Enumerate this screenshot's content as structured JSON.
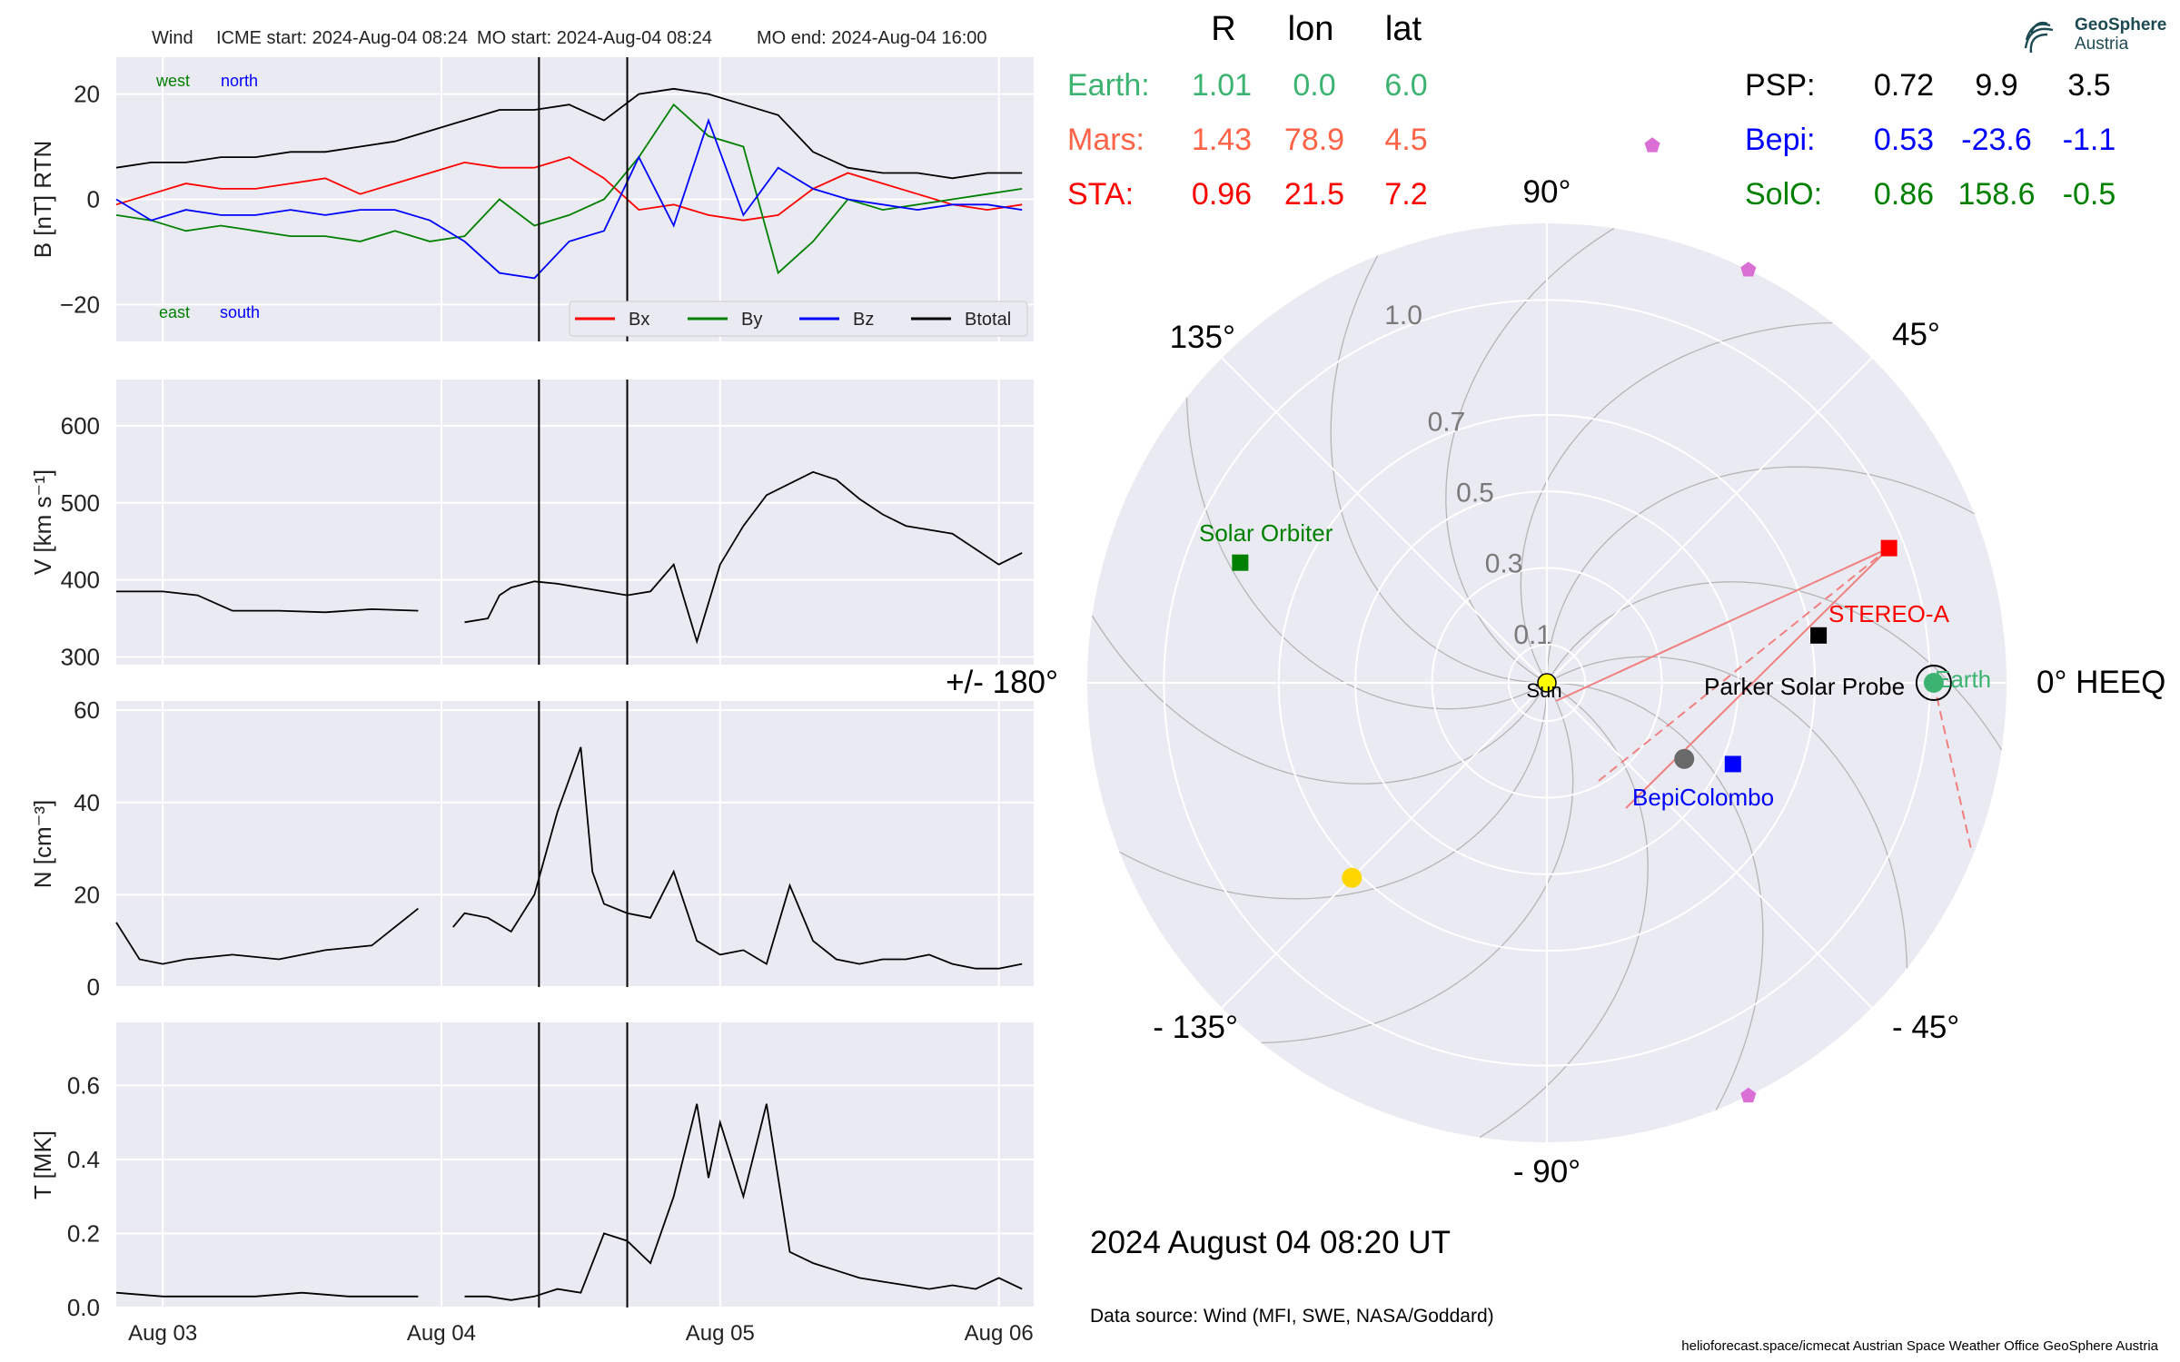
{
  "header": {
    "spacecraft": "Wind",
    "icme_start": "ICME start: 2024-Aug-04 08:24",
    "mo_start": "MO start: 2024-Aug-04 08:24",
    "mo_end": "MO end: 2024-Aug-04 16:00"
  },
  "logo": {
    "line1": "GeoSphere",
    "line2": "Austria"
  },
  "date_label": "2024 August 04  08:20 UT",
  "data_source": "Data source: Wind (MFI, SWE, NASA/Goddard)",
  "footer": "helioforecast.space/icmecat   Austrian Space Weather Office   GeoSphere Austria",
  "position_table": {
    "headers": [
      "R",
      "lon",
      "lat"
    ],
    "left_rows": [
      {
        "name": "Earth:",
        "R": "1.01",
        "lon": "0.0",
        "lat": "6.0",
        "color": "#3cb371"
      },
      {
        "name": "Mars:",
        "R": "1.43",
        "lon": "78.9",
        "lat": "4.5",
        "color": "#ff6347"
      },
      {
        "name": "STA:",
        "R": "0.96",
        "lon": "21.5",
        "lat": "7.2",
        "color": "#ff0000"
      }
    ],
    "right_rows": [
      {
        "name": "PSP:",
        "R": "0.72",
        "lon": "9.9",
        "lat": "3.5",
        "color": "#000000"
      },
      {
        "name": "Bepi:",
        "R": "0.53",
        "lon": "-23.6",
        "lat": "-1.1",
        "color": "#0000ff"
      },
      {
        "name": "SolO:",
        "R": "0.86",
        "lon": "158.6",
        "lat": "-0.5",
        "color": "#008000"
      }
    ]
  },
  "chart_data": [
    {
      "type": "line",
      "ylabel": "B [nT] RTN",
      "ylim": [
        -27,
        27
      ],
      "yticks": [
        -20,
        0,
        20
      ],
      "ytick_labels": [
        "−20",
        "0",
        "20"
      ],
      "x_range": [
        "2024-08-02 20:00",
        "2024-08-06 03:00"
      ],
      "xticks": [
        "Aug 03",
        "Aug 04",
        "Aug 05",
        "Aug 06"
      ],
      "vlines": [
        "2024-08-04 08:24",
        "2024-08-04 16:00"
      ],
      "labels": {
        "west": "west",
        "north": "north",
        "east": "east",
        "south": "south"
      },
      "legend": "lower right",
      "series": [
        {
          "name": "Bx",
          "color": "#ff0000",
          "x": [
            0,
            3,
            6,
            9,
            12,
            15,
            18,
            21,
            24,
            27,
            30,
            33,
            36,
            39,
            42,
            45,
            48,
            51,
            54,
            57,
            60,
            63,
            66,
            69,
            72,
            75,
            78
          ],
          "y": [
            -1,
            1,
            3,
            2,
            2,
            3,
            4,
            1,
            3,
            5,
            7,
            6,
            6,
            8,
            4,
            -2,
            -1,
            -3,
            -4,
            -3,
            2,
            5,
            3,
            1,
            -1,
            -2,
            -1
          ]
        },
        {
          "name": "By",
          "color": "#008000",
          "x": [
            0,
            3,
            6,
            9,
            12,
            15,
            18,
            21,
            24,
            27,
            30,
            33,
            36,
            39,
            42,
            45,
            48,
            51,
            54,
            57,
            60,
            63,
            66,
            69,
            72,
            75,
            78
          ],
          "y": [
            -3,
            -4,
            -6,
            -5,
            -6,
            -7,
            -7,
            -8,
            -6,
            -8,
            -7,
            0,
            -5,
            -3,
            0,
            8,
            18,
            12,
            10,
            -14,
            -8,
            0,
            -2,
            -1,
            0,
            1,
            2
          ]
        },
        {
          "name": "Bz",
          "color": "#0000ff",
          "x": [
            0,
            3,
            6,
            9,
            12,
            15,
            18,
            21,
            24,
            27,
            30,
            33,
            36,
            39,
            42,
            45,
            48,
            51,
            54,
            57,
            60,
            63,
            66,
            69,
            72,
            75,
            78
          ],
          "y": [
            0,
            -4,
            -2,
            -3,
            -3,
            -2,
            -3,
            -2,
            -2,
            -4,
            -8,
            -14,
            -15,
            -8,
            -6,
            8,
            -5,
            15,
            -3,
            6,
            2,
            0,
            -1,
            -2,
            -1,
            -1,
            -2
          ]
        },
        {
          "name": "Btotal",
          "color": "#000000",
          "x": [
            0,
            3,
            6,
            9,
            12,
            15,
            18,
            21,
            24,
            27,
            30,
            33,
            36,
            39,
            42,
            45,
            48,
            51,
            54,
            57,
            60,
            63,
            66,
            69,
            72,
            75,
            78
          ],
          "y": [
            6,
            7,
            7,
            8,
            8,
            9,
            9,
            10,
            11,
            13,
            15,
            17,
            17,
            18,
            15,
            20,
            21,
            20,
            18,
            16,
            9,
            6,
            5,
            5,
            4,
            5,
            5
          ]
        }
      ]
    },
    {
      "type": "line",
      "ylabel": "V [km s⁻¹]",
      "ylim": [
        290,
        660
      ],
      "yticks": [
        300,
        400,
        500,
        600
      ],
      "ytick_labels": [
        "300",
        "400",
        "500",
        "600"
      ],
      "series": [
        {
          "name": "",
          "color": "#000000",
          "x": [
            0,
            4,
            7,
            10,
            14,
            18,
            22,
            26,
            28,
            30,
            32,
            33,
            34,
            36,
            38,
            40,
            42,
            44,
            46,
            48,
            50,
            52,
            54,
            56,
            58,
            60,
            62,
            64,
            66,
            68,
            70,
            72,
            74,
            76,
            78
          ],
          "y": [
            385,
            385,
            380,
            360,
            360,
            358,
            362,
            360,
            null,
            345,
            350,
            380,
            390,
            398,
            395,
            390,
            385,
            380,
            385,
            420,
            320,
            420,
            470,
            510,
            525,
            540,
            530,
            505,
            485,
            470,
            465,
            460,
            440,
            420,
            435
          ]
        }
      ]
    },
    {
      "type": "line",
      "ylabel": "N [cm⁻³]",
      "ylim": [
        0,
        62
      ],
      "yticks": [
        0,
        20,
        40,
        60
      ],
      "ytick_labels": [
        "0",
        "20",
        "40",
        "60"
      ],
      "series": [
        {
          "name": "",
          "color": "#000000",
          "x": [
            0,
            2,
            4,
            6,
            10,
            14,
            18,
            22,
            26,
            28,
            29,
            30,
            32,
            34,
            36,
            38,
            40,
            41,
            42,
            43,
            44,
            46,
            48,
            50,
            52,
            54,
            56,
            58,
            60,
            62,
            64,
            66,
            68,
            70,
            72,
            74,
            76,
            78
          ],
          "y": [
            14,
            6,
            5,
            6,
            7,
            6,
            8,
            9,
            17,
            null,
            13,
            16,
            15,
            12,
            20,
            38,
            52,
            25,
            18,
            17,
            16,
            15,
            25,
            10,
            7,
            8,
            5,
            22,
            10,
            6,
            5,
            6,
            6,
            7,
            5,
            4,
            4,
            5
          ]
        }
      ]
    },
    {
      "type": "line",
      "ylabel": "T [MK]",
      "ylim": [
        0,
        0.77
      ],
      "yticks": [
        0,
        0.2,
        0.4,
        0.6
      ],
      "ytick_labels": [
        "0.0",
        "0.2",
        "0.4",
        "0.6"
      ],
      "series": [
        {
          "name": "",
          "color": "#000000",
          "x": [
            0,
            4,
            8,
            12,
            16,
            20,
            24,
            26,
            27,
            30,
            32,
            34,
            36,
            38,
            40,
            42,
            44,
            46,
            48,
            50,
            51,
            52,
            54,
            56,
            58,
            60,
            62,
            64,
            66,
            68,
            70,
            72,
            74,
            76,
            78
          ],
          "y": [
            0.04,
            0.03,
            0.03,
            0.03,
            0.04,
            0.03,
            0.03,
            0.03,
            null,
            0.03,
            0.03,
            0.02,
            0.03,
            0.05,
            0.04,
            0.2,
            0.18,
            0.12,
            0.3,
            0.55,
            0.35,
            0.5,
            0.3,
            0.55,
            0.15,
            0.12,
            0.1,
            0.08,
            0.07,
            0.06,
            0.05,
            0.06,
            0.05,
            0.08,
            0.05
          ]
        }
      ]
    },
    {
      "type": "scatter",
      "subtype": "polar",
      "title": "",
      "r_max": 1.2,
      "r_ticks": [
        0.1,
        0.3,
        0.5,
        0.7,
        1.0
      ],
      "r_tick_labels": [
        "0.1",
        "0.3",
        "0.5",
        "0.7",
        "1.0"
      ],
      "angle_labels": [
        {
          "deg": 0,
          "text": "0° HEEQ"
        },
        {
          "deg": 45,
          "text": "45°"
        },
        {
          "deg": 90,
          "text": "90°"
        },
        {
          "deg": 135,
          "text": "135°"
        },
        {
          "deg": 180,
          "text": "+/- 180°"
        },
        {
          "deg": -135,
          "text": "- 135°"
        },
        {
          "deg": -90,
          "text": "- 90°"
        },
        {
          "deg": -45,
          "text": "- 45°"
        }
      ],
      "objects": [
        {
          "name": "Sun",
          "r": 0,
          "lon": 0,
          "marker": "circle",
          "color": "#ffff00",
          "label": "Sun",
          "label_color": "#000000"
        },
        {
          "name": "Earth",
          "r": 1.01,
          "lon": 0.0,
          "marker": "circle",
          "color": "#3cb371",
          "label": "Earth",
          "label_color": "#3cb371"
        },
        {
          "name": "STEREO-A",
          "r": 0.96,
          "lon": 21.5,
          "marker": "square",
          "color": "#ff0000",
          "label": "STEREO-A",
          "label_color": "#ff0000"
        },
        {
          "name": "Parker Solar Probe",
          "r": 0.72,
          "lon": 9.9,
          "marker": "square",
          "color": "#000000",
          "label": "Parker Solar Probe",
          "label_color": "#000000"
        },
        {
          "name": "BepiColombo",
          "r": 0.53,
          "lon": -23.6,
          "marker": "square",
          "color": "#0000ff",
          "label": "BepiColombo",
          "label_color": "#0000ff"
        },
        {
          "name": "Solar Orbiter",
          "r": 0.86,
          "lon": 158.6,
          "marker": "square",
          "color": "#008000",
          "label": "Solar Orbiter",
          "label_color": "#008000"
        },
        {
          "name": "Mercury",
          "r": 0.41,
          "lon": -29,
          "marker": "circle",
          "color": "#696969",
          "label": "",
          "label_color": "#000000"
        },
        {
          "name": "Venus",
          "r": 0.72,
          "lon": -135,
          "marker": "circle",
          "color": "#ffd700",
          "label": "",
          "label_color": "#000000"
        },
        {
          "name": "Mars",
          "r": 1.43,
          "lon": 78.9,
          "marker": "pentagon",
          "color": "#da70d6",
          "label": "",
          "label_color": "#000000"
        },
        {
          "name": "Pentagon",
          "r": 1.2,
          "lon": 64,
          "marker": "pentagon",
          "color": "#da70d6",
          "label": "",
          "label_color": "#000000"
        },
        {
          "name": "Pentagon",
          "r": 1.2,
          "lon": -64,
          "marker": "pentagon",
          "color": "#da70d6",
          "label": "",
          "label_color": "#000000"
        }
      ]
    }
  ]
}
